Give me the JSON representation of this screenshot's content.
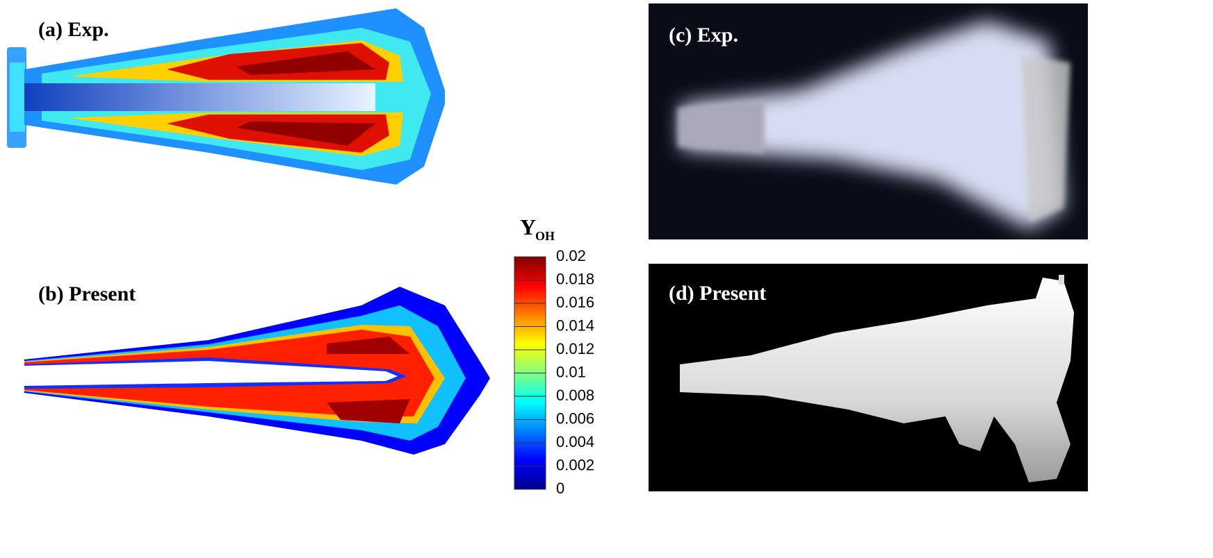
{
  "panels": [
    {
      "label": "(a) Exp."
    },
    {
      "label": "(b) Present"
    },
    {
      "label": "(c) Exp."
    },
    {
      "label": "(d) Present"
    }
  ],
  "colorbar": {
    "title": "Y",
    "subscript": "OH",
    "lim": [
      0,
      0.02
    ],
    "ticks": [
      0,
      0.002,
      0.004,
      0.006,
      0.008,
      0.01,
      0.012,
      0.014,
      0.016,
      0.018,
      0.02
    ]
  }
}
